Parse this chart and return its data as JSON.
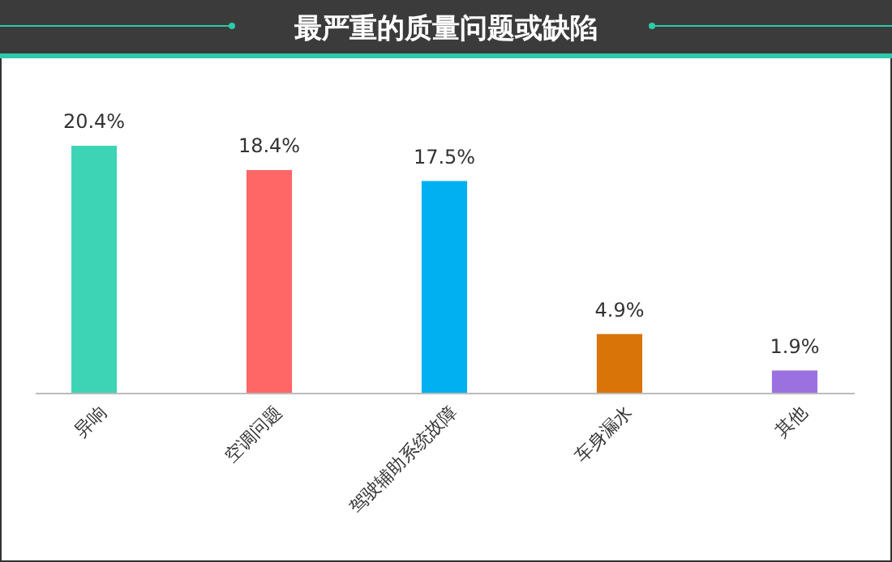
{
  "chart_data": {
    "type": "bar",
    "title": "最严重的质量问题或缺陷",
    "categories": [
      "异响",
      "空调问题",
      "驾驶辅助系统故障",
      "车身漏水",
      "其他"
    ],
    "values": [
      20.4,
      18.4,
      17.5,
      4.9,
      1.9
    ],
    "colors": [
      "#3dd4b6",
      "#ff6666",
      "#00b0f0",
      "#d97408",
      "#9b71e0"
    ],
    "value_labels": [
      "20.4%",
      "18.4%",
      "17.5%",
      "4.9%",
      "1.9%"
    ]
  }
}
